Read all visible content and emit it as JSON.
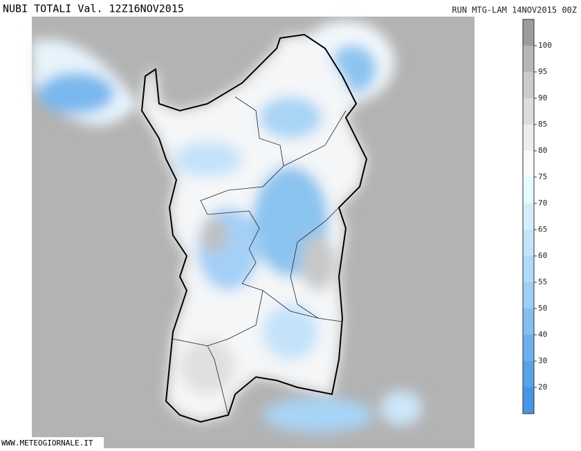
{
  "header": {
    "title": "NUBI TOTALI Val. 12Z16NOV2015",
    "run": "RUN MTG-LAM 14NOV2015 00Z"
  },
  "colorbar": {
    "labels": [
      100,
      95,
      90,
      85,
      80,
      75,
      70,
      65,
      60,
      55,
      50,
      40,
      30,
      20
    ],
    "colors": [
      "#9c9c9c",
      "#b6b6b6",
      "#cbcbcb",
      "#dddddd",
      "#ededed",
      "#fafafa",
      "#e6faff",
      "#d6eefc",
      "#c4e4fa",
      "#b0daf8",
      "#9ccef6",
      "#84bef0",
      "#6cb0ec",
      "#58a2e8",
      "#4696e6"
    ]
  },
  "footer": {
    "source": "WWW.METEOGIORNALE.IT"
  }
}
